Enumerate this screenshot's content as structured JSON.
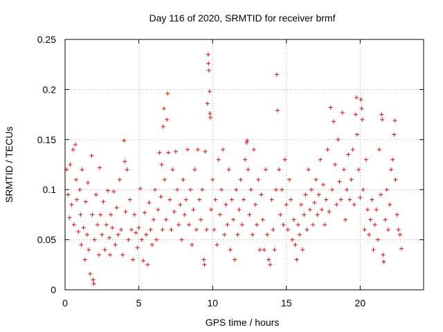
{
  "chart_data": {
    "type": "scatter",
    "title": "Day 116 of 2020, SRMTID for receiver brmf",
    "xlabel": "GPS time / hours",
    "ylabel": "SRMTID / TECUs",
    "xlim": [
      0,
      24.3
    ],
    "ylim": [
      0,
      0.25
    ],
    "xticks": [
      0,
      5,
      10,
      15,
      20
    ],
    "xtick_labels": [
      "0",
      "5",
      "10",
      "15",
      "20"
    ],
    "yticks": [
      0,
      0.05,
      0.1,
      0.15,
      0.2,
      0.25
    ],
    "ytick_labels": [
      "0",
      "0.05",
      "0.1",
      "0.15",
      "0.2",
      "0.25"
    ],
    "grid": true,
    "marker": "plus",
    "color": "#ff0000",
    "series": [
      {
        "name": "SRMTID",
        "points": [
          [
            0.1,
            0.12
          ],
          [
            0.2,
            0.095
          ],
          [
            0.3,
            0.072
          ],
          [
            0.35,
            0.125
          ],
          [
            0.45,
            0.085
          ],
          [
            0.55,
            0.14
          ],
          [
            0.6,
            0.065
          ],
          [
            0.7,
            0.145
          ],
          [
            0.75,
            0.11
          ],
          [
            0.8,
            0.09
          ],
          [
            0.9,
            0.058
          ],
          [
            1.0,
            0.1
          ],
          [
            1.05,
            0.075
          ],
          [
            1.1,
            0.045
          ],
          [
            1.15,
            0.12
          ],
          [
            1.25,
            0.062
          ],
          [
            1.35,
            0.03
          ],
          [
            1.4,
            0.088
          ],
          [
            1.5,
            0.055
          ],
          [
            1.55,
            0.107
          ],
          [
            1.6,
            0.04
          ],
          [
            1.7,
            0.016
          ],
          [
            1.8,
            0.134
          ],
          [
            1.85,
            0.075
          ],
          [
            1.9,
            0.01
          ],
          [
            1.95,
            0.006
          ],
          [
            2.0,
            0.05
          ],
          [
            2.1,
            0.095
          ],
          [
            2.2,
            0.065
          ],
          [
            2.3,
            0.035
          ],
          [
            2.35,
            0.122
          ],
          [
            2.4,
            0.075
          ],
          [
            2.5,
            0.055
          ],
          [
            2.6,
            0.088
          ],
          [
            2.7,
            0.04
          ],
          [
            2.8,
            0.065
          ],
          [
            2.9,
            0.099
          ],
          [
            3.0,
            0.052
          ],
          [
            3.05,
            0.035
          ],
          [
            3.1,
            0.075
          ],
          [
            3.2,
            0.062
          ],
          [
            3.3,
            0.098
          ],
          [
            3.4,
            0.045
          ],
          [
            3.5,
            0.082
          ],
          [
            3.6,
            0.055
          ],
          [
            3.7,
            0.11
          ],
          [
            3.8,
            0.06
          ],
          [
            3.9,
            0.035
          ],
          [
            4.0,
            0.149
          ],
          [
            4.05,
            0.128
          ],
          [
            4.1,
            0.078
          ],
          [
            4.2,
            0.12
          ],
          [
            4.3,
            0.05
          ],
          [
            4.4,
            0.09
          ],
          [
            4.5,
            0.06
          ],
          [
            4.6,
            0.03
          ],
          [
            4.7,
            0.075
          ],
          [
            4.8,
            0.057
          ],
          [
            4.9,
            0.042
          ],
          [
            5.0,
            0.062
          ],
          [
            5.1,
            0.101
          ],
          [
            5.2,
            0.05
          ],
          [
            5.3,
            0.029
          ],
          [
            5.4,
            0.077
          ],
          [
            5.5,
            0.055
          ],
          [
            5.6,
            0.025
          ],
          [
            5.7,
            0.087
          ],
          [
            5.8,
            0.06
          ],
          [
            5.9,
            0.045
          ],
          [
            6.0,
            0.07
          ],
          [
            6.1,
            0.1
          ],
          [
            6.2,
            0.05
          ],
          [
            6.3,
            0.08
          ],
          [
            6.4,
            0.137
          ],
          [
            6.5,
            0.093
          ],
          [
            6.55,
            0.125
          ],
          [
            6.6,
            0.06
          ],
          [
            6.65,
            0.163
          ],
          [
            6.7,
            0.181
          ],
          [
            6.75,
            0.11
          ],
          [
            6.85,
            0.07
          ],
          [
            6.9,
            0.17
          ],
          [
            6.95,
            0.196
          ],
          [
            7.0,
            0.137
          ],
          [
            7.1,
            0.09
          ],
          [
            7.2,
            0.06
          ],
          [
            7.3,
            0.12
          ],
          [
            7.4,
            0.078
          ],
          [
            7.5,
            0.138
          ],
          [
            7.6,
            0.1
          ],
          [
            7.7,
            0.065
          ],
          [
            7.8,
            0.085
          ],
          [
            7.9,
            0.05
          ],
          [
            8.0,
            0.11
          ],
          [
            8.1,
            0.075
          ],
          [
            8.2,
            0.09
          ],
          [
            8.3,
            0.14
          ],
          [
            8.4,
            0.065
          ],
          [
            8.5,
            0.1
          ],
          [
            8.6,
            0.045
          ],
          [
            8.7,
            0.08
          ],
          [
            8.8,
            0.12
          ],
          [
            8.9,
            0.06
          ],
          [
            9.0,
            0.14
          ],
          [
            9.1,
            0.09
          ],
          [
            9.2,
            0.07
          ],
          [
            9.3,
            0.1
          ],
          [
            9.4,
            0.03
          ],
          [
            9.45,
            0.025
          ],
          [
            9.5,
            0.138
          ],
          [
            9.6,
            0.06
          ],
          [
            9.65,
            0.186
          ],
          [
            9.7,
            0.235
          ],
          [
            9.72,
            0.226
          ],
          [
            9.75,
            0.219
          ],
          [
            9.8,
            0.198
          ],
          [
            9.82,
            0.176
          ],
          [
            9.85,
            0.172
          ],
          [
            9.9,
            0.08
          ],
          [
            10.0,
            0.11
          ],
          [
            10.1,
            0.06
          ],
          [
            10.2,
            0.09
          ],
          [
            10.3,
            0.045
          ],
          [
            10.4,
            0.13
          ],
          [
            10.5,
            0.075
          ],
          [
            10.6,
            0.1
          ],
          [
            10.7,
            0.14
          ],
          [
            10.8,
            0.055
          ],
          [
            10.9,
            0.085
          ],
          [
            11.0,
            0.065
          ],
          [
            11.1,
            0.12
          ],
          [
            11.2,
            0.04
          ],
          [
            11.3,
            0.09
          ],
          [
            11.4,
            0.07
          ],
          [
            11.5,
            0.03
          ],
          [
            11.6,
            0.1
          ],
          [
            11.7,
            0.055
          ],
          [
            11.8,
            0.08
          ],
          [
            11.9,
            0.11
          ],
          [
            12.0,
            0.065
          ],
          [
            12.1,
            0.09
          ],
          [
            12.2,
            0.13
          ],
          [
            12.3,
            0.147
          ],
          [
            12.35,
            0.149
          ],
          [
            12.4,
            0.12
          ],
          [
            12.5,
            0.075
          ],
          [
            12.6,
            0.1
          ],
          [
            12.7,
            0.055
          ],
          [
            12.8,
            0.14
          ],
          [
            12.9,
            0.085
          ],
          [
            13.0,
            0.065
          ],
          [
            13.1,
            0.11
          ],
          [
            13.2,
            0.04
          ],
          [
            13.3,
            0.095
          ],
          [
            13.4,
            0.07
          ],
          [
            13.5,
            0.04
          ],
          [
            13.6,
            0.12
          ],
          [
            13.7,
            0.055
          ],
          [
            13.8,
            0.03
          ],
          [
            13.9,
            0.025
          ],
          [
            14.0,
            0.09
          ],
          [
            14.1,
            0.06
          ],
          [
            14.2,
            0.04
          ],
          [
            14.3,
            0.1
          ],
          [
            14.35,
            0.215
          ],
          [
            14.4,
            0.179
          ],
          [
            14.5,
            0.12
          ],
          [
            14.6,
            0.075
          ],
          [
            14.7,
            0.1
          ],
          [
            14.8,
            0.065
          ],
          [
            14.9,
            0.13
          ],
          [
            15.0,
            0.085
          ],
          [
            15.1,
            0.06
          ],
          [
            15.2,
            0.11
          ],
          [
            15.3,
            0.09
          ],
          [
            15.4,
            0.05
          ],
          [
            15.5,
            0.07
          ],
          [
            15.6,
            0.045
          ],
          [
            15.7,
            0.03
          ],
          [
            15.8,
            0.065
          ],
          [
            15.9,
            0.055
          ],
          [
            16.0,
            0.085
          ],
          [
            16.1,
            0.04
          ],
          [
            16.2,
            0.075
          ],
          [
            16.3,
            0.095
          ],
          [
            16.4,
            0.06
          ],
          [
            16.5,
            0.12
          ],
          [
            16.6,
            0.08
          ],
          [
            16.7,
            0.1
          ],
          [
            16.8,
            0.065
          ],
          [
            16.9,
            0.087
          ],
          [
            17.0,
            0.11
          ],
          [
            17.1,
            0.075
          ],
          [
            17.2,
            0.095
          ],
          [
            17.3,
            0.13
          ],
          [
            17.4,
            0.08
          ],
          [
            17.5,
            0.105
          ],
          [
            17.6,
            0.065
          ],
          [
            17.7,
            0.09
          ],
          [
            17.8,
            0.14
          ],
          [
            17.9,
            0.078
          ],
          [
            18.0,
            0.182
          ],
          [
            18.1,
            0.1
          ],
          [
            18.2,
            0.168
          ],
          [
            18.3,
            0.125
          ],
          [
            18.4,
            0.085
          ],
          [
            18.5,
            0.15
          ],
          [
            18.6,
            0.108
          ],
          [
            18.7,
            0.09
          ],
          [
            18.8,
            0.177
          ],
          [
            18.9,
            0.12
          ],
          [
            19.0,
            0.07
          ],
          [
            19.1,
            0.1
          ],
          [
            19.2,
            0.135
          ],
          [
            19.3,
            0.09
          ],
          [
            19.4,
            0.11
          ],
          [
            19.5,
            0.14
          ],
          [
            19.6,
            0.085
          ],
          [
            19.7,
            0.175
          ],
          [
            19.75,
            0.192
          ],
          [
            19.8,
            0.155
          ],
          [
            19.9,
            0.12
          ],
          [
            20.0,
            0.092
          ],
          [
            20.05,
            0.19
          ],
          [
            20.1,
            0.181
          ],
          [
            20.15,
            0.17
          ],
          [
            20.2,
            0.1
          ],
          [
            20.3,
            0.06
          ],
          [
            20.4,
            0.13
          ],
          [
            20.5,
            0.08
          ],
          [
            20.6,
            0.055
          ],
          [
            20.7,
            0.07
          ],
          [
            20.8,
            0.09
          ],
          [
            20.9,
            0.04
          ],
          [
            21.0,
            0.065
          ],
          [
            21.1,
            0.08
          ],
          [
            21.2,
            0.05
          ],
          [
            21.3,
            0.14
          ],
          [
            21.4,
            0.095
          ],
          [
            21.45,
            0.175
          ],
          [
            21.5,
            0.17
          ],
          [
            21.55,
            0.035
          ],
          [
            21.6,
            0.028
          ],
          [
            21.7,
            0.07
          ],
          [
            21.8,
            0.1
          ],
          [
            21.9,
            0.06
          ],
          [
            22.0,
            0.085
          ],
          [
            22.1,
            0.12
          ],
          [
            22.2,
            0.13
          ],
          [
            22.3,
            0.155
          ],
          [
            22.35,
            0.169
          ],
          [
            22.4,
            0.11
          ],
          [
            22.5,
            0.075
          ],
          [
            22.6,
            0.06
          ],
          [
            22.7,
            0.055
          ],
          [
            22.8,
            0.041
          ]
        ]
      }
    ]
  }
}
